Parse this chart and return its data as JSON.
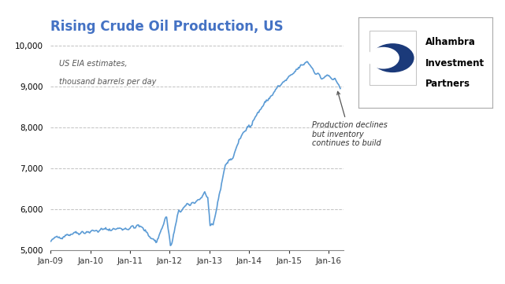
{
  "title": "Rising Crude Oil Production, US",
  "subtitle_line1": "US EIA estimates,",
  "subtitle_line2": "thousand barrels per day",
  "annotation_text": "Production declines\nbut inventory\ncontinues to build",
  "line_color": "#5B9BD5",
  "line_width": 1.2,
  "background_color": "#FFFFFF",
  "grid_color": "#BBBBBB",
  "title_color": "#4472C4",
  "ylim": [
    5000,
    10000
  ],
  "yticks": [
    5000,
    6000,
    7000,
    8000,
    9000,
    10000
  ],
  "logo_text_line1": "Alhambra",
  "logo_text_line2": "Investment",
  "logo_text_line3": "Partners"
}
